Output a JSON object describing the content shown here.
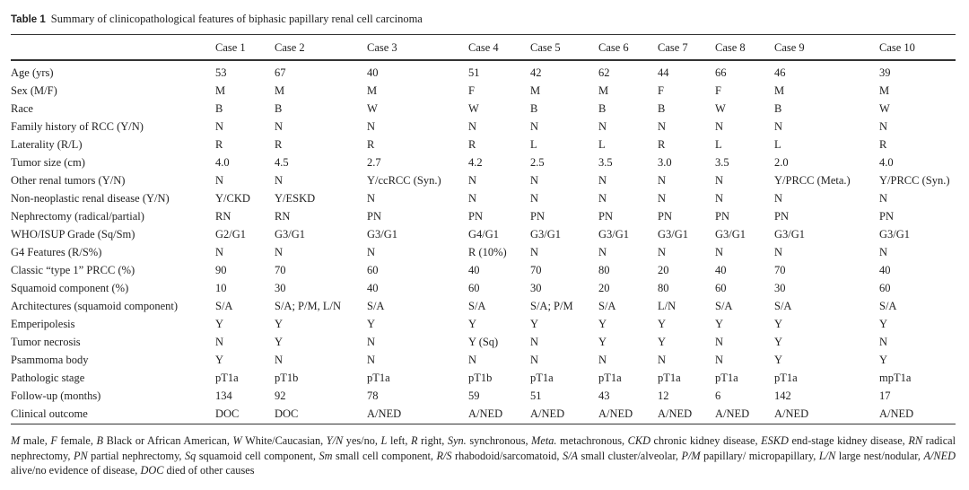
{
  "caption": {
    "label": "Table 1",
    "title": "Summary of clinicopathological features of biphasic papillary renal cell carcinoma"
  },
  "columns": [
    "",
    "Case 1",
    "Case 2",
    "Case 3",
    "Case 4",
    "Case 5",
    "Case 6",
    "Case 7",
    "Case 8",
    "Case 9",
    "Case 10"
  ],
  "rows": [
    [
      "Age (yrs)",
      "53",
      "67",
      "40",
      "51",
      "42",
      "62",
      "44",
      "66",
      "46",
      "39"
    ],
    [
      "Sex (M/F)",
      "M",
      "M",
      "M",
      "F",
      "M",
      "M",
      "F",
      "F",
      "M",
      "M"
    ],
    [
      "Race",
      "B",
      "B",
      "W",
      "W",
      "B",
      "B",
      "B",
      "W",
      "B",
      "W"
    ],
    [
      "Family history of RCC (Y/N)",
      "N",
      "N",
      "N",
      "N",
      "N",
      "N",
      "N",
      "N",
      "N",
      "N"
    ],
    [
      "Laterality (R/L)",
      "R",
      "R",
      "R",
      "R",
      "L",
      "L",
      "R",
      "L",
      "L",
      "R"
    ],
    [
      "Tumor size (cm)",
      "4.0",
      "4.5",
      "2.7",
      "4.2",
      "2.5",
      "3.5",
      "3.0",
      "3.5",
      "2.0",
      "4.0"
    ],
    [
      "Other renal tumors (Y/N)",
      "N",
      "N",
      "Y/ccRCC (Syn.)",
      "N",
      "N",
      "N",
      "N",
      "N",
      "Y/PRCC (Meta.)",
      "Y/PRCC (Syn.)"
    ],
    [
      "Non-neoplastic renal disease (Y/N)",
      "Y/CKD",
      "Y/ESKD",
      "N",
      "N",
      "N",
      "N",
      "N",
      "N",
      "N",
      "N"
    ],
    [
      "Nephrectomy (radical/partial)",
      "RN",
      "RN",
      "PN",
      "PN",
      "PN",
      "PN",
      "PN",
      "PN",
      "PN",
      "PN"
    ],
    [
      "WHO/ISUP Grade (Sq/Sm)",
      "G2/G1",
      "G3/G1",
      "G3/G1",
      "G4/G1",
      "G3/G1",
      "G3/G1",
      "G3/G1",
      "G3/G1",
      "G3/G1",
      "G3/G1"
    ],
    [
      "G4 Features (R/S%)",
      "N",
      "N",
      "N",
      "R (10%)",
      "N",
      "N",
      "N",
      "N",
      "N",
      "N"
    ],
    [
      "Classic “type 1” PRCC (%)",
      "90",
      "70",
      "60",
      "40",
      "70",
      "80",
      "20",
      "40",
      "70",
      "40"
    ],
    [
      "Squamoid component (%)",
      "10",
      "30",
      "40",
      "60",
      "30",
      "20",
      "80",
      "60",
      "30",
      "60"
    ],
    [
      "Architectures (squamoid component)",
      "S/A",
      "S/A; P/M, L/N",
      "S/A",
      "S/A",
      "S/A; P/M",
      "S/A",
      "L/N",
      "S/A",
      "S/A",
      "S/A"
    ],
    [
      "Emperipolesis",
      "Y",
      "Y",
      "Y",
      "Y",
      "Y",
      "Y",
      "Y",
      "Y",
      "Y",
      "Y"
    ],
    [
      "Tumor necrosis",
      "N",
      "Y",
      "N",
      "Y (Sq)",
      "N",
      "Y",
      "Y",
      "N",
      "Y",
      "N"
    ],
    [
      "Psammoma body",
      "Y",
      "N",
      "N",
      "N",
      "N",
      "N",
      "N",
      "N",
      "Y",
      "Y"
    ],
    [
      "Pathologic stage",
      "pT1a",
      "pT1b",
      "pT1a",
      "pT1b",
      "pT1a",
      "pT1a",
      "pT1a",
      "pT1a",
      "pT1a",
      "mpT1a"
    ],
    [
      "Follow-up (months)",
      "134",
      "92",
      "78",
      "59",
      "51",
      "43",
      "12",
      "6",
      "142",
      "17"
    ],
    [
      "Clinical outcome",
      "DOC",
      "DOC",
      "A/NED",
      "A/NED",
      "A/NED",
      "A/NED",
      "A/NED",
      "A/NED",
      "A/NED",
      "A/NED"
    ]
  ],
  "footnote": [
    [
      "M",
      " male, "
    ],
    [
      "F",
      " female, "
    ],
    [
      "B",
      " Black or African American, "
    ],
    [
      "W",
      " White/Caucasian, "
    ],
    [
      "Y/N",
      " yes/no, "
    ],
    [
      "L",
      " left, "
    ],
    [
      "R",
      " right, "
    ],
    [
      "Syn.",
      " synchronous, "
    ],
    [
      "Meta.",
      " metachronous, "
    ],
    [
      "CKD",
      " chronic kidney disease, "
    ],
    [
      "ESKD",
      " end-stage kidney disease, "
    ],
    [
      "RN",
      " radical nephrectomy, "
    ],
    [
      "PN",
      " partial nephrectomy, "
    ],
    [
      "Sq",
      " squamoid cell component, "
    ],
    [
      "Sm",
      " small cell component, "
    ],
    [
      "R/S",
      " rhabodoid/sarcomatoid, "
    ],
    [
      "S/A",
      " small cluster/alveolar, "
    ],
    [
      "P/M",
      " papillary/ micropapillary, "
    ],
    [
      "L/N",
      " large nest/nodular, "
    ],
    [
      "A/NED",
      " alive/no evidence of disease, "
    ],
    [
      "DOC",
      " died of other causes"
    ]
  ]
}
